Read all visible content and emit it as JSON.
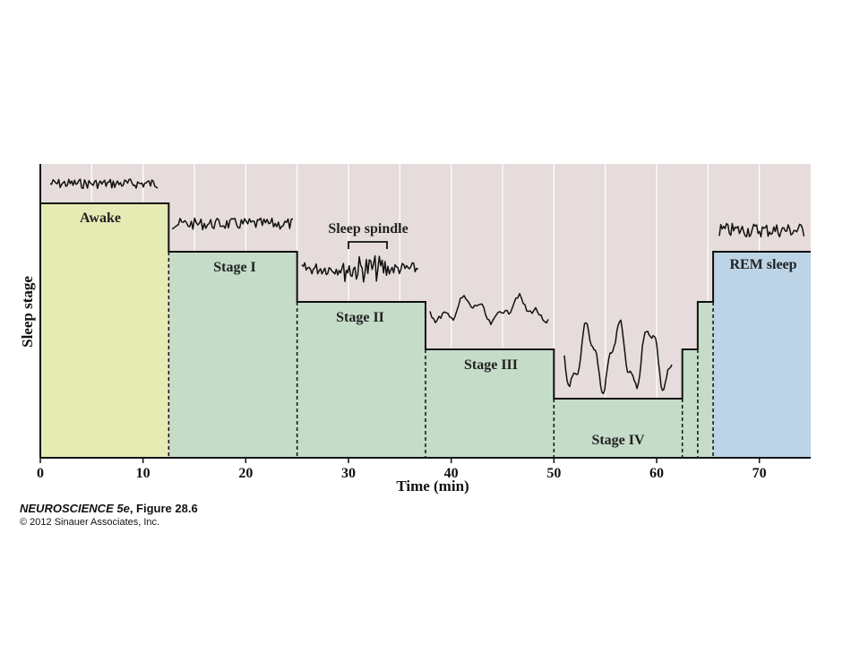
{
  "chart_data": {
    "type": "step",
    "xlabel": "Time (min)",
    "ylabel": "Sleep stage",
    "xlim": [
      0,
      75
    ],
    "x_ticks": [
      0,
      10,
      20,
      30,
      40,
      50,
      60,
      70
    ],
    "stage_levels": {
      "Awake": 5,
      "Stage I": 4,
      "Stage II": 3,
      "Stage III": 2,
      "Stage IV": 1,
      "REM sleep": 4
    },
    "segments": [
      {
        "label": "Awake",
        "start": 0,
        "end": 12.5,
        "level": 5,
        "color": "#e6ebb4",
        "show_label": true
      },
      {
        "label": "Stage I",
        "start": 12.5,
        "end": 25,
        "level": 4,
        "color": "#c4dcc8",
        "show_label": true
      },
      {
        "label": "Stage II",
        "start": 25,
        "end": 37.5,
        "level": 3,
        "color": "#c4dcc8",
        "show_label": true
      },
      {
        "label": "Stage III",
        "start": 37.5,
        "end": 50,
        "level": 2,
        "color": "#c4dcc8",
        "show_label": true
      },
      {
        "label": "Stage IV",
        "start": 50,
        "end": 62.5,
        "level": 1,
        "color": "#c4dcc8",
        "show_label": true
      },
      {
        "label": "Stage III",
        "start": 62.5,
        "end": 64,
        "level": 2,
        "color": "#c4dcc8",
        "show_label": false
      },
      {
        "label": "Stage II",
        "start": 64,
        "end": 65.5,
        "level": 3,
        "color": "#c4dcc8",
        "show_label": false
      },
      {
        "label": "REM sleep",
        "start": 65.5,
        "end": 75,
        "level": 4,
        "color": "#bcd4e6",
        "show_label": true
      }
    ],
    "annotation": "Sleep spindle",
    "background_color": "#e6dcdc"
  },
  "caption": {
    "title_italic": "NEUROSCIENCE 5e",
    "title_rest": ", Figure 28.6",
    "copyright": "© 2012 Sinauer Associates, Inc."
  }
}
